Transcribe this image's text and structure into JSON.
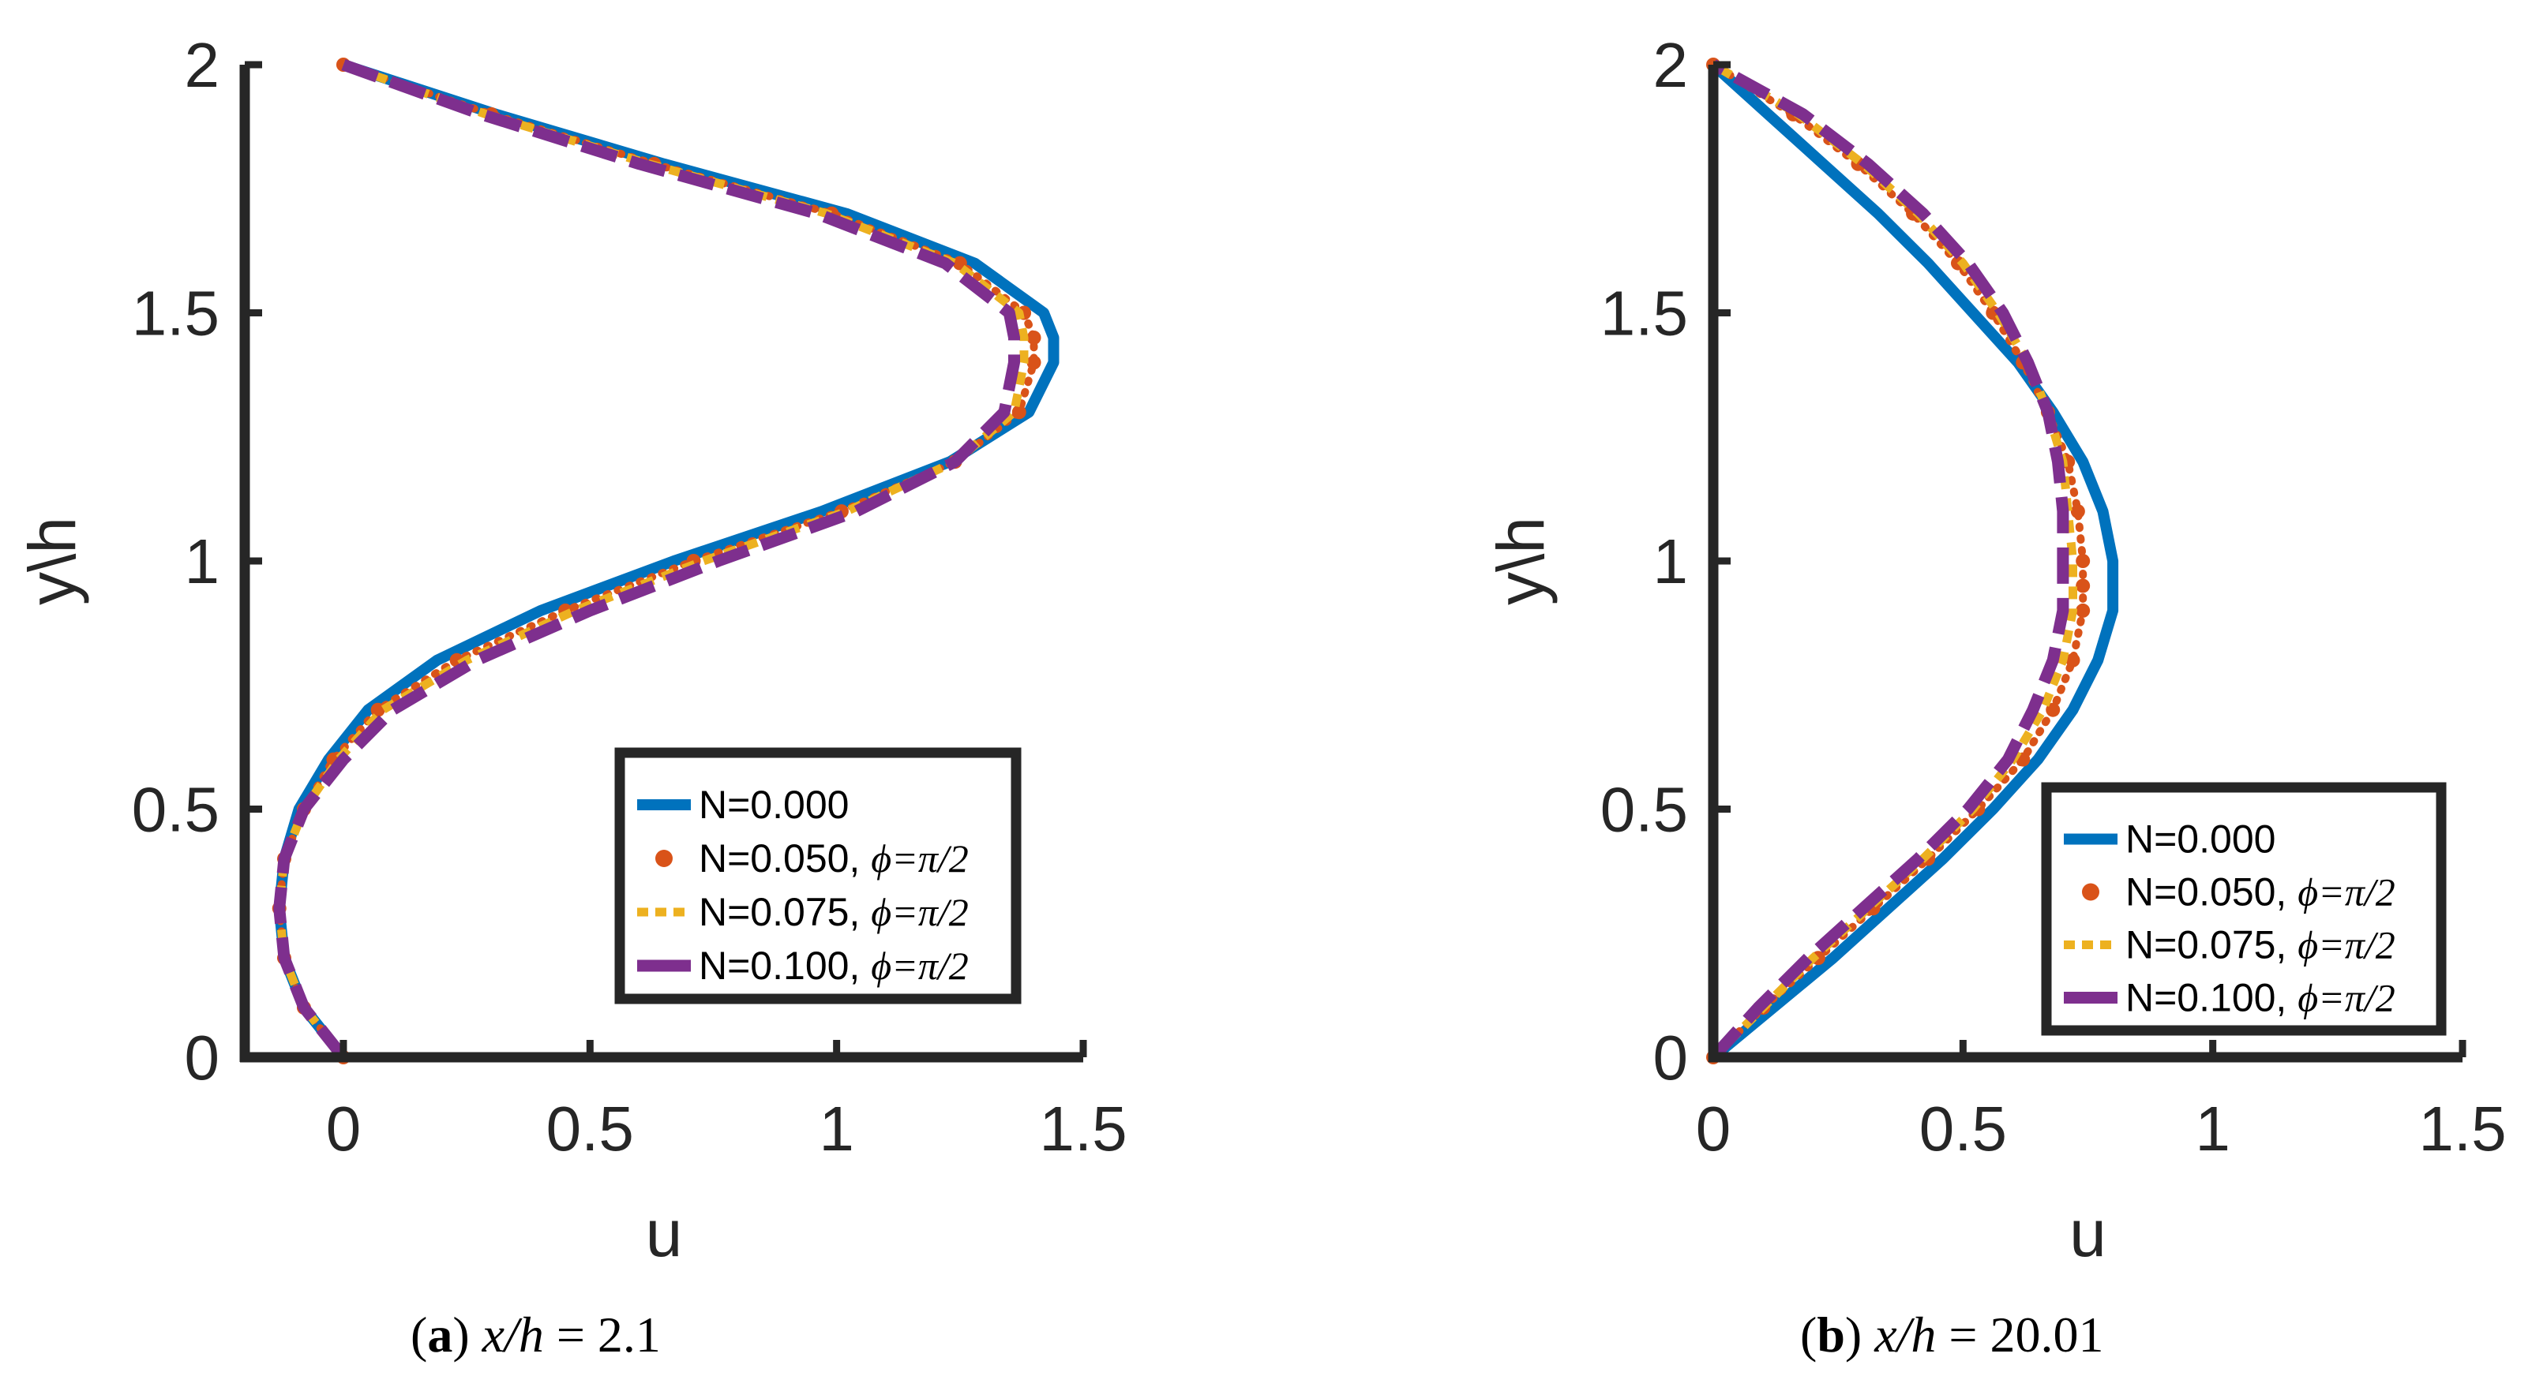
{
  "colors": {
    "axis": "#262626",
    "legend_border": "#262626",
    "series": [
      "#0072BD",
      "#D95319",
      "#EDB120",
      "#7E2F8E"
    ]
  },
  "series_styles": [
    "solid",
    "dotted-markers",
    "dashed",
    "dashed-thick"
  ],
  "captions": [
    {
      "tag": "a",
      "expr_var": "x/h",
      "expr_eq": " = ",
      "expr_val": "2.1"
    },
    {
      "tag": "b",
      "expr_var": "x/h",
      "expr_eq": " = ",
      "expr_val": "20.01"
    }
  ],
  "chart_data": [
    {
      "type": "line",
      "xlabel": "u",
      "ylabel": "y\\h",
      "xlim": [
        -0.2,
        1.5
      ],
      "ylim": [
        0,
        2
      ],
      "xticks": [
        "0",
        "0.5",
        "1",
        "1.5"
      ],
      "xtick_values": [
        0,
        0.5,
        1,
        1.5
      ],
      "yticks": [
        "0",
        "0.5",
        "1",
        "1.5",
        "2"
      ],
      "ytick_values": [
        0,
        0.5,
        1,
        1.5,
        2
      ],
      "legend_position": "bottom-right",
      "legend": [
        {
          "name": "N=0.000",
          "phi": ""
        },
        {
          "name": "N=0.050, ",
          "phi": "ϕ=π/2"
        },
        {
          "name": "N=0.075, ",
          "phi": "ϕ=π/2"
        },
        {
          "name": "N=0.100, ",
          "phi": "ϕ=π/2"
        }
      ],
      "series": [
        {
          "name": "N=0.000",
          "y": [
            0,
            0.1,
            0.2,
            0.3,
            0.4,
            0.5,
            0.6,
            0.7,
            0.8,
            0.9,
            1.0,
            1.1,
            1.2,
            1.3,
            1.4,
            1.45,
            1.5,
            1.6,
            1.7,
            1.8,
            1.9,
            2.0
          ],
          "x": [
            0,
            -0.08,
            -0.12,
            -0.13,
            -0.12,
            -0.09,
            -0.03,
            0.05,
            0.19,
            0.4,
            0.67,
            0.97,
            1.23,
            1.39,
            1.44,
            1.44,
            1.42,
            1.28,
            1.02,
            0.65,
            0.31,
            0
          ]
        },
        {
          "name": "N=0.050, ϕ=π/2",
          "y": [
            0,
            0.1,
            0.2,
            0.3,
            0.4,
            0.5,
            0.6,
            0.7,
            0.8,
            0.9,
            1.0,
            1.1,
            1.2,
            1.3,
            1.4,
            1.45,
            1.5,
            1.6,
            1.7,
            1.8,
            1.9,
            2.0
          ],
          "x": [
            0,
            -0.08,
            -0.12,
            -0.13,
            -0.12,
            -0.08,
            -0.02,
            0.07,
            0.23,
            0.45,
            0.71,
            1.01,
            1.24,
            1.37,
            1.4,
            1.4,
            1.38,
            1.25,
            0.99,
            0.63,
            0.3,
            0
          ]
        },
        {
          "name": "N=0.075, ϕ=π/2",
          "y": [
            0,
            0.1,
            0.2,
            0.3,
            0.4,
            0.5,
            0.6,
            0.7,
            0.8,
            0.9,
            1.0,
            1.1,
            1.2,
            1.3,
            1.4,
            1.45,
            1.5,
            1.6,
            1.7,
            1.8,
            1.9,
            2.0
          ],
          "x": [
            0,
            -0.08,
            -0.12,
            -0.13,
            -0.12,
            -0.08,
            -0.01,
            0.08,
            0.25,
            0.47,
            0.73,
            1.02,
            1.24,
            1.36,
            1.38,
            1.38,
            1.37,
            1.24,
            0.98,
            0.62,
            0.29,
            0
          ]
        },
        {
          "name": "N=0.100, ϕ=π/2",
          "y": [
            0,
            0.1,
            0.2,
            0.3,
            0.4,
            0.5,
            0.6,
            0.7,
            0.8,
            0.9,
            1.0,
            1.1,
            1.2,
            1.3,
            1.4,
            1.45,
            1.5,
            1.6,
            1.7,
            1.8,
            1.9,
            2.0
          ],
          "x": [
            0,
            -0.08,
            -0.12,
            -0.13,
            -0.12,
            -0.08,
            0.0,
            0.1,
            0.27,
            0.5,
            0.76,
            1.04,
            1.24,
            1.34,
            1.36,
            1.36,
            1.35,
            1.22,
            0.96,
            0.6,
            0.28,
            0
          ]
        }
      ]
    },
    {
      "type": "line",
      "xlabel": "u",
      "ylabel": "y\\h",
      "xlim": [
        0,
        1.5
      ],
      "ylim": [
        0,
        2
      ],
      "xticks": [
        "0",
        "0.5",
        "1",
        "1.5"
      ],
      "xtick_values": [
        0,
        0.5,
        1,
        1.5
      ],
      "yticks": [
        "0",
        "0.5",
        "1",
        "1.5",
        "2"
      ],
      "ytick_values": [
        0,
        0.5,
        1,
        1.5,
        2
      ],
      "legend_position": "bottom-right",
      "legend": [
        {
          "name": "N=0.000",
          "phi": ""
        },
        {
          "name": "N=0.050, ",
          "phi": "ϕ=π/2"
        },
        {
          "name": "N=0.075, ",
          "phi": "ϕ=π/2"
        },
        {
          "name": "N=0.100, ",
          "phi": "ϕ=π/2"
        }
      ],
      "series": [
        {
          "name": "N=0.000",
          "y": [
            0,
            0.1,
            0.2,
            0.3,
            0.4,
            0.5,
            0.6,
            0.7,
            0.8,
            0.9,
            0.95,
            1.0,
            1.1,
            1.2,
            1.3,
            1.4,
            1.5,
            1.6,
            1.7,
            1.8,
            1.9,
            2.0
          ],
          "x": [
            0,
            0.12,
            0.24,
            0.35,
            0.46,
            0.56,
            0.65,
            0.72,
            0.77,
            0.8,
            0.8,
            0.8,
            0.78,
            0.74,
            0.68,
            0.61,
            0.52,
            0.43,
            0.33,
            0.22,
            0.11,
            0
          ]
        },
        {
          "name": "N=0.050, ϕ=π/2",
          "y": [
            0,
            0.1,
            0.2,
            0.3,
            0.4,
            0.5,
            0.6,
            0.7,
            0.8,
            0.9,
            0.95,
            1.0,
            1.1,
            1.2,
            1.3,
            1.4,
            1.5,
            1.6,
            1.7,
            1.8,
            1.9,
            2.0
          ],
          "x": [
            0,
            0.1,
            0.21,
            0.32,
            0.43,
            0.53,
            0.62,
            0.68,
            0.72,
            0.74,
            0.74,
            0.74,
            0.73,
            0.71,
            0.67,
            0.62,
            0.56,
            0.49,
            0.4,
            0.29,
            0.16,
            0
          ]
        },
        {
          "name": "N=0.075, ϕ=π/2",
          "y": [
            0,
            0.1,
            0.2,
            0.3,
            0.4,
            0.5,
            0.6,
            0.7,
            0.8,
            0.9,
            0.95,
            1.0,
            1.1,
            1.2,
            1.3,
            1.4,
            1.5,
            1.6,
            1.7,
            1.8,
            1.9,
            2.0
          ],
          "x": [
            0,
            0.1,
            0.2,
            0.31,
            0.42,
            0.52,
            0.6,
            0.66,
            0.7,
            0.72,
            0.72,
            0.72,
            0.71,
            0.7,
            0.67,
            0.63,
            0.57,
            0.5,
            0.41,
            0.3,
            0.17,
            0
          ]
        },
        {
          "name": "N=0.100, ϕ=π/2",
          "y": [
            0,
            0.1,
            0.2,
            0.3,
            0.4,
            0.5,
            0.6,
            0.7,
            0.8,
            0.9,
            0.95,
            1.0,
            1.1,
            1.2,
            1.3,
            1.4,
            1.5,
            1.6,
            1.7,
            1.8,
            1.9,
            2.0
          ],
          "x": [
            0,
            0.09,
            0.19,
            0.3,
            0.41,
            0.51,
            0.59,
            0.64,
            0.68,
            0.7,
            0.7,
            0.7,
            0.7,
            0.69,
            0.67,
            0.63,
            0.58,
            0.51,
            0.42,
            0.31,
            0.18,
            0
          ]
        }
      ]
    }
  ]
}
